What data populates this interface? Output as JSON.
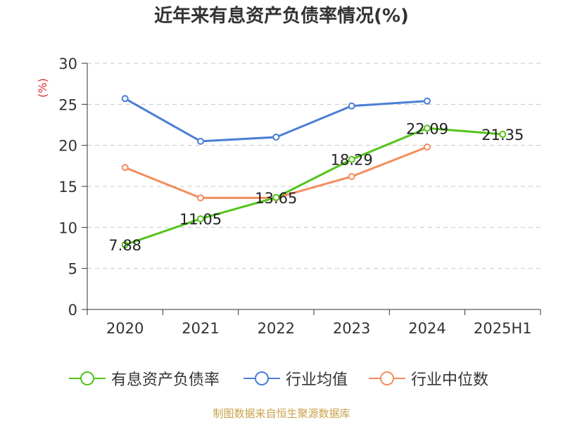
{
  "title": "近年来有息资产负债率情况(%)",
  "source": "制图数据来自恒生聚源数据库",
  "chart_data": {
    "type": "line",
    "title": "近年来有息资产负债率情况(%)",
    "ylabel": "(%)",
    "xlabel": "",
    "categories": [
      "2020",
      "2021",
      "2022",
      "2023",
      "2024",
      "2025H1"
    ],
    "ylim": [
      0,
      30
    ],
    "yticks": [
      0,
      5,
      10,
      15,
      20,
      25,
      30
    ],
    "grid": true,
    "legend_position": "bottom",
    "series": [
      {
        "name": "有息资产负债率",
        "color": "#52c41a",
        "values": [
          7.88,
          11.05,
          13.65,
          18.29,
          22.09,
          21.35
        ],
        "labels": [
          "7.88",
          "11.05",
          "13.65",
          "18.29",
          "22.09",
          "21.35"
        ]
      },
      {
        "name": "行业均值",
        "color": "#4a7fd4",
        "values": [
          25.7,
          20.5,
          21.0,
          24.8,
          25.4,
          null
        ]
      },
      {
        "name": "行业中位数",
        "color": "#f58d5c",
        "values": [
          17.3,
          13.6,
          13.6,
          16.2,
          19.8,
          null
        ]
      }
    ]
  }
}
